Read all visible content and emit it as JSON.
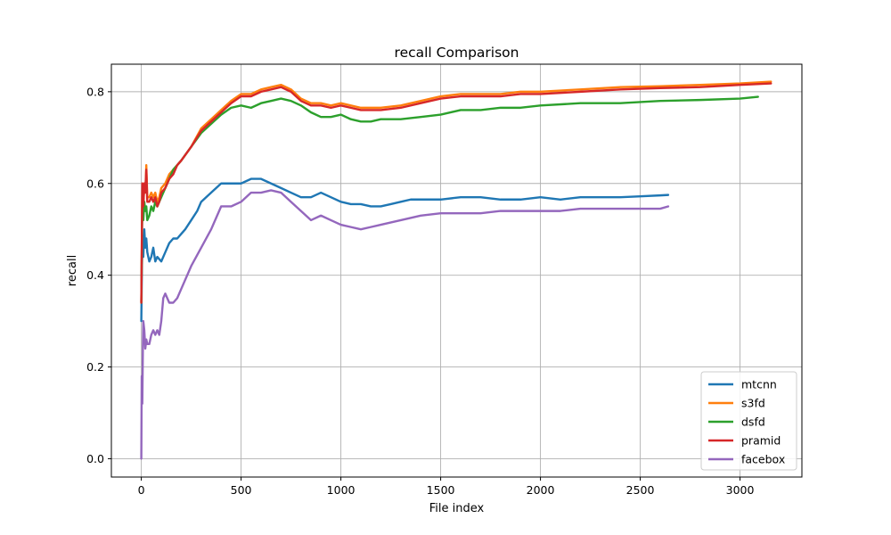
{
  "chart_data": {
    "type": "line",
    "title": "recall Comparison",
    "xlabel": "File index",
    "ylabel": "recall",
    "xlim": [
      -150,
      3310
    ],
    "ylim": [
      -0.04,
      0.86
    ],
    "xticks": [
      0,
      500,
      1000,
      1500,
      2000,
      2500,
      3000
    ],
    "yticks": [
      0.0,
      0.2,
      0.4,
      0.6,
      0.8
    ],
    "xtick_labels": [
      "0",
      "500",
      "1000",
      "1500",
      "2000",
      "2500",
      "3000"
    ],
    "ytick_labels": [
      "0.0",
      "0.2",
      "0.4",
      "0.6",
      "0.8"
    ],
    "grid": true,
    "legend_position": "lower-right",
    "series": [
      {
        "name": "mtcnn",
        "color": "#1f77b4",
        "points": [
          [
            0,
            0.3
          ],
          [
            3,
            0.42
          ],
          [
            6,
            0.47
          ],
          [
            10,
            0.44
          ],
          [
            15,
            0.5
          ],
          [
            20,
            0.46
          ],
          [
            25,
            0.48
          ],
          [
            30,
            0.45
          ],
          [
            40,
            0.43
          ],
          [
            50,
            0.44
          ],
          [
            60,
            0.46
          ],
          [
            70,
            0.43
          ],
          [
            80,
            0.44
          ],
          [
            100,
            0.43
          ],
          [
            120,
            0.45
          ],
          [
            140,
            0.47
          ],
          [
            160,
            0.48
          ],
          [
            180,
            0.48
          ],
          [
            200,
            0.49
          ],
          [
            220,
            0.5
          ],
          [
            250,
            0.52
          ],
          [
            280,
            0.54
          ],
          [
            300,
            0.56
          ],
          [
            350,
            0.58
          ],
          [
            400,
            0.6
          ],
          [
            450,
            0.6
          ],
          [
            500,
            0.6
          ],
          [
            550,
            0.61
          ],
          [
            600,
            0.61
          ],
          [
            650,
            0.6
          ],
          [
            700,
            0.59
          ],
          [
            750,
            0.58
          ],
          [
            800,
            0.57
          ],
          [
            850,
            0.57
          ],
          [
            900,
            0.58
          ],
          [
            950,
            0.57
          ],
          [
            1000,
            0.56
          ],
          [
            1050,
            0.555
          ],
          [
            1100,
            0.555
          ],
          [
            1150,
            0.55
          ],
          [
            1200,
            0.55
          ],
          [
            1250,
            0.555
          ],
          [
            1300,
            0.56
          ],
          [
            1350,
            0.565
          ],
          [
            1400,
            0.565
          ],
          [
            1500,
            0.565
          ],
          [
            1600,
            0.57
          ],
          [
            1700,
            0.57
          ],
          [
            1800,
            0.565
          ],
          [
            1900,
            0.565
          ],
          [
            2000,
            0.57
          ],
          [
            2100,
            0.565
          ],
          [
            2200,
            0.57
          ],
          [
            2300,
            0.57
          ],
          [
            2400,
            0.57
          ],
          [
            2500,
            0.572
          ],
          [
            2600,
            0.574
          ],
          [
            2640,
            0.575
          ]
        ]
      },
      {
        "name": "s3fd",
        "color": "#ff7f0e",
        "points": [
          [
            0,
            0.34
          ],
          [
            5,
            0.6
          ],
          [
            10,
            0.55
          ],
          [
            15,
            0.6
          ],
          [
            20,
            0.58
          ],
          [
            25,
            0.64
          ],
          [
            30,
            0.57
          ],
          [
            40,
            0.57
          ],
          [
            50,
            0.58
          ],
          [
            60,
            0.57
          ],
          [
            70,
            0.58
          ],
          [
            80,
            0.56
          ],
          [
            90,
            0.57
          ],
          [
            100,
            0.59
          ],
          [
            120,
            0.6
          ],
          [
            140,
            0.62
          ],
          [
            160,
            0.63
          ],
          [
            180,
            0.64
          ],
          [
            200,
            0.65
          ],
          [
            250,
            0.68
          ],
          [
            300,
            0.72
          ],
          [
            350,
            0.74
          ],
          [
            400,
            0.76
          ],
          [
            450,
            0.78
          ],
          [
            500,
            0.795
          ],
          [
            550,
            0.795
          ],
          [
            600,
            0.805
          ],
          [
            650,
            0.81
          ],
          [
            700,
            0.815
          ],
          [
            750,
            0.805
          ],
          [
            800,
            0.785
          ],
          [
            850,
            0.775
          ],
          [
            900,
            0.775
          ],
          [
            950,
            0.77
          ],
          [
            1000,
            0.775
          ],
          [
            1050,
            0.77
          ],
          [
            1100,
            0.765
          ],
          [
            1150,
            0.765
          ],
          [
            1200,
            0.765
          ],
          [
            1300,
            0.77
          ],
          [
            1400,
            0.78
          ],
          [
            1500,
            0.79
          ],
          [
            1600,
            0.795
          ],
          [
            1700,
            0.795
          ],
          [
            1800,
            0.795
          ],
          [
            1900,
            0.8
          ],
          [
            2000,
            0.8
          ],
          [
            2200,
            0.805
          ],
          [
            2400,
            0.81
          ],
          [
            2600,
            0.812
          ],
          [
            2800,
            0.815
          ],
          [
            3000,
            0.818
          ],
          [
            3155,
            0.822
          ]
        ]
      },
      {
        "name": "dsfd",
        "color": "#2ca02c",
        "points": [
          [
            0,
            0.34
          ],
          [
            5,
            0.55
          ],
          [
            10,
            0.52
          ],
          [
            15,
            0.56
          ],
          [
            20,
            0.54
          ],
          [
            25,
            0.55
          ],
          [
            30,
            0.52
          ],
          [
            40,
            0.53
          ],
          [
            50,
            0.55
          ],
          [
            60,
            0.54
          ],
          [
            70,
            0.56
          ],
          [
            80,
            0.55
          ],
          [
            90,
            0.56
          ],
          [
            100,
            0.57
          ],
          [
            120,
            0.59
          ],
          [
            140,
            0.61
          ],
          [
            160,
            0.63
          ],
          [
            180,
            0.64
          ],
          [
            200,
            0.65
          ],
          [
            250,
            0.68
          ],
          [
            300,
            0.71
          ],
          [
            350,
            0.73
          ],
          [
            400,
            0.75
          ],
          [
            450,
            0.765
          ],
          [
            500,
            0.77
          ],
          [
            550,
            0.765
          ],
          [
            600,
            0.775
          ],
          [
            650,
            0.78
          ],
          [
            700,
            0.785
          ],
          [
            750,
            0.78
          ],
          [
            800,
            0.77
          ],
          [
            850,
            0.755
          ],
          [
            900,
            0.745
          ],
          [
            950,
            0.745
          ],
          [
            1000,
            0.75
          ],
          [
            1050,
            0.74
          ],
          [
            1100,
            0.735
          ],
          [
            1150,
            0.735
          ],
          [
            1200,
            0.74
          ],
          [
            1300,
            0.74
          ],
          [
            1400,
            0.745
          ],
          [
            1500,
            0.75
          ],
          [
            1600,
            0.76
          ],
          [
            1700,
            0.76
          ],
          [
            1800,
            0.765
          ],
          [
            1900,
            0.765
          ],
          [
            2000,
            0.77
          ],
          [
            2200,
            0.775
          ],
          [
            2400,
            0.775
          ],
          [
            2600,
            0.78
          ],
          [
            2800,
            0.782
          ],
          [
            3000,
            0.785
          ],
          [
            3090,
            0.789
          ]
        ]
      },
      {
        "name": "pramid",
        "color": "#d62728",
        "points": [
          [
            0,
            0.34
          ],
          [
            5,
            0.6
          ],
          [
            10,
            0.55
          ],
          [
            15,
            0.6
          ],
          [
            20,
            0.58
          ],
          [
            25,
            0.63
          ],
          [
            30,
            0.56
          ],
          [
            40,
            0.56
          ],
          [
            50,
            0.57
          ],
          [
            60,
            0.56
          ],
          [
            70,
            0.57
          ],
          [
            80,
            0.55
          ],
          [
            90,
            0.56
          ],
          [
            100,
            0.58
          ],
          [
            120,
            0.59
          ],
          [
            140,
            0.61
          ],
          [
            160,
            0.62
          ],
          [
            180,
            0.64
          ],
          [
            200,
            0.65
          ],
          [
            250,
            0.68
          ],
          [
            300,
            0.715
          ],
          [
            350,
            0.735
          ],
          [
            400,
            0.755
          ],
          [
            450,
            0.775
          ],
          [
            500,
            0.79
          ],
          [
            550,
            0.79
          ],
          [
            600,
            0.8
          ],
          [
            650,
            0.805
          ],
          [
            700,
            0.81
          ],
          [
            750,
            0.8
          ],
          [
            800,
            0.78
          ],
          [
            850,
            0.77
          ],
          [
            900,
            0.77
          ],
          [
            950,
            0.765
          ],
          [
            1000,
            0.77
          ],
          [
            1050,
            0.765
          ],
          [
            1100,
            0.76
          ],
          [
            1150,
            0.76
          ],
          [
            1200,
            0.76
          ],
          [
            1300,
            0.765
          ],
          [
            1400,
            0.775
          ],
          [
            1500,
            0.785
          ],
          [
            1600,
            0.79
          ],
          [
            1700,
            0.79
          ],
          [
            1800,
            0.79
          ],
          [
            1900,
            0.795
          ],
          [
            2000,
            0.795
          ],
          [
            2200,
            0.8
          ],
          [
            2400,
            0.805
          ],
          [
            2600,
            0.808
          ],
          [
            2800,
            0.81
          ],
          [
            3000,
            0.815
          ],
          [
            3155,
            0.818
          ]
        ]
      },
      {
        "name": "facebox",
        "color": "#9467bd",
        "points": [
          [
            0,
            0.0
          ],
          [
            2,
            0.18
          ],
          [
            5,
            0.12
          ],
          [
            8,
            0.25
          ],
          [
            10,
            0.3
          ],
          [
            15,
            0.28
          ],
          [
            20,
            0.24
          ],
          [
            25,
            0.26
          ],
          [
            30,
            0.25
          ],
          [
            40,
            0.25
          ],
          [
            50,
            0.27
          ],
          [
            60,
            0.28
          ],
          [
            70,
            0.27
          ],
          [
            80,
            0.28
          ],
          [
            90,
            0.27
          ],
          [
            100,
            0.3
          ],
          [
            110,
            0.35
          ],
          [
            120,
            0.36
          ],
          [
            140,
            0.34
          ],
          [
            160,
            0.34
          ],
          [
            180,
            0.35
          ],
          [
            200,
            0.37
          ],
          [
            250,
            0.42
          ],
          [
            300,
            0.46
          ],
          [
            350,
            0.5
          ],
          [
            400,
            0.55
          ],
          [
            450,
            0.55
          ],
          [
            500,
            0.56
          ],
          [
            550,
            0.58
          ],
          [
            600,
            0.58
          ],
          [
            650,
            0.585
          ],
          [
            700,
            0.58
          ],
          [
            750,
            0.56
          ],
          [
            800,
            0.54
          ],
          [
            850,
            0.52
          ],
          [
            900,
            0.53
          ],
          [
            950,
            0.52
          ],
          [
            1000,
            0.51
          ],
          [
            1050,
            0.505
          ],
          [
            1100,
            0.5
          ],
          [
            1150,
            0.505
          ],
          [
            1200,
            0.51
          ],
          [
            1300,
            0.52
          ],
          [
            1400,
            0.53
          ],
          [
            1500,
            0.535
          ],
          [
            1600,
            0.535
          ],
          [
            1700,
            0.535
          ],
          [
            1800,
            0.54
          ],
          [
            1900,
            0.54
          ],
          [
            2000,
            0.54
          ],
          [
            2100,
            0.54
          ],
          [
            2200,
            0.545
          ],
          [
            2300,
            0.545
          ],
          [
            2400,
            0.545
          ],
          [
            2500,
            0.545
          ],
          [
            2600,
            0.545
          ],
          [
            2640,
            0.55
          ]
        ]
      }
    ]
  }
}
